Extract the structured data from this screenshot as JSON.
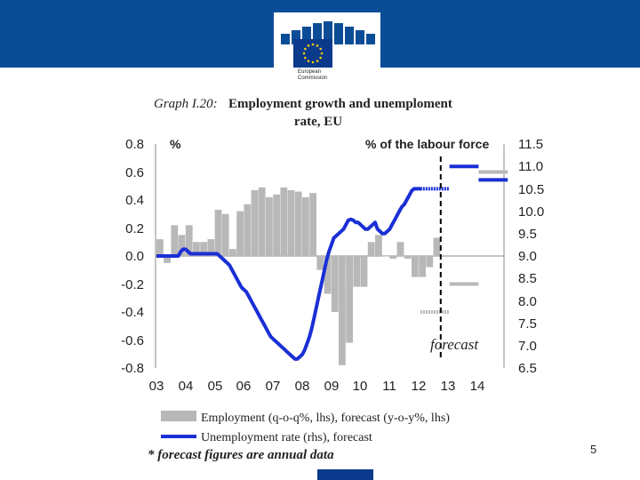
{
  "header": {
    "logo_line1": "European",
    "logo_line2": "Commission",
    "colors": {
      "bar": "#0b4c97",
      "flag": "#0b3a8c",
      "stars": "#ffcc00"
    }
  },
  "page_number": "5",
  "chart_data": {
    "type": "bar+line",
    "title_prefix": "Graph I.20:",
    "title_main": "Employment growth and unemploment",
    "title_line2": "rate, EU",
    "left_axis_unit": "%",
    "right_axis_unit": "% of the labour force",
    "x_tick_labels": [
      "03",
      "04",
      "05",
      "06",
      "07",
      "08",
      "09",
      "10",
      "11",
      "12",
      "13",
      "14"
    ],
    "left_ticks": [
      "0.8",
      "0.6",
      "0.4",
      "0.2",
      "0.0",
      "-0.2",
      "-0.4",
      "-0.6",
      "-0.8"
    ],
    "right_ticks": [
      "11.5",
      "11.0",
      "10.5",
      "10.0",
      "9.5",
      "9.0",
      "8.5",
      "8.0",
      "7.5",
      "7.0",
      "6.5"
    ],
    "left_ylim": [
      -0.8,
      0.8
    ],
    "right_ylim": [
      6.5,
      11.5
    ],
    "forecast_label": "forecast",
    "forecast_start": 2012.75,
    "legend": {
      "employment": "Employment (q-o-q%, lhs), forecast (y-o-y%, lhs)",
      "unemployment": "Unemployment rate (rhs), forecast"
    },
    "footnote": "* forecast figures are annual data",
    "colors": {
      "employment": "#b8b8b8",
      "unemployment": "#1a2fd6",
      "forecast_line": "#000000"
    },
    "employment_quarterly": {
      "start": 2003.0,
      "step": 0.25,
      "values": [
        0.12,
        -0.05,
        0.22,
        0.15,
        0.22,
        0.1,
        0.1,
        0.12,
        0.33,
        0.3,
        0.05,
        0.32,
        0.37,
        0.47,
        0.49,
        0.42,
        0.44,
        0.49,
        0.47,
        0.46,
        0.42,
        0.45,
        -0.1,
        -0.27,
        -0.4,
        -0.78,
        -0.62,
        -0.22,
        -0.22,
        0.1,
        0.15,
        0.0,
        -0.02,
        0.1,
        -0.02,
        -0.15,
        -0.15,
        -0.08,
        0.13
      ]
    },
    "employment_forecast_annual": [
      {
        "year": 2012,
        "value": -0.4
      },
      {
        "year": 2013,
        "value": -0.2
      },
      {
        "year": 2014,
        "value": 0.6
      }
    ],
    "unemployment_monthly": {
      "start": 2003.0,
      "step": 0.0833333,
      "values": [
        9.0,
        9.0,
        9.0,
        9.0,
        9.0,
        9.0,
        9.0,
        9.0,
        9.0,
        9.0,
        9.1,
        9.15,
        9.15,
        9.1,
        9.05,
        9.05,
        9.05,
        9.05,
        9.05,
        9.05,
        9.05,
        9.05,
        9.05,
        9.05,
        9.05,
        9.05,
        9.0,
        8.95,
        8.9,
        8.85,
        8.8,
        8.7,
        8.6,
        8.5,
        8.4,
        8.3,
        8.25,
        8.2,
        8.1,
        8.0,
        7.9,
        7.8,
        7.7,
        7.6,
        7.5,
        7.4,
        7.3,
        7.2,
        7.15,
        7.1,
        7.05,
        7.0,
        6.95,
        6.9,
        6.85,
        6.8,
        6.75,
        6.7,
        6.7,
        6.75,
        6.8,
        6.9,
        7.05,
        7.2,
        7.4,
        7.65,
        7.9,
        8.15,
        8.4,
        8.65,
        8.9,
        9.1,
        9.25,
        9.4,
        9.45,
        9.5,
        9.55,
        9.6,
        9.7,
        9.8,
        9.82,
        9.8,
        9.75,
        9.75,
        9.7,
        9.65,
        9.6,
        9.6,
        9.65,
        9.7,
        9.75,
        9.6,
        9.55,
        9.5,
        9.5,
        9.55,
        9.6,
        9.7,
        9.8,
        9.9,
        10.0,
        10.1,
        10.15,
        10.25,
        10.35,
        10.45,
        10.5,
        10.5,
        10.5,
        10.5
      ]
    },
    "unemployment_forecast_annual": [
      {
        "year": 2012,
        "value": 10.5
      },
      {
        "year": 2013,
        "value": 11.0
      },
      {
        "year": 2014,
        "value": 10.7
      }
    ]
  }
}
